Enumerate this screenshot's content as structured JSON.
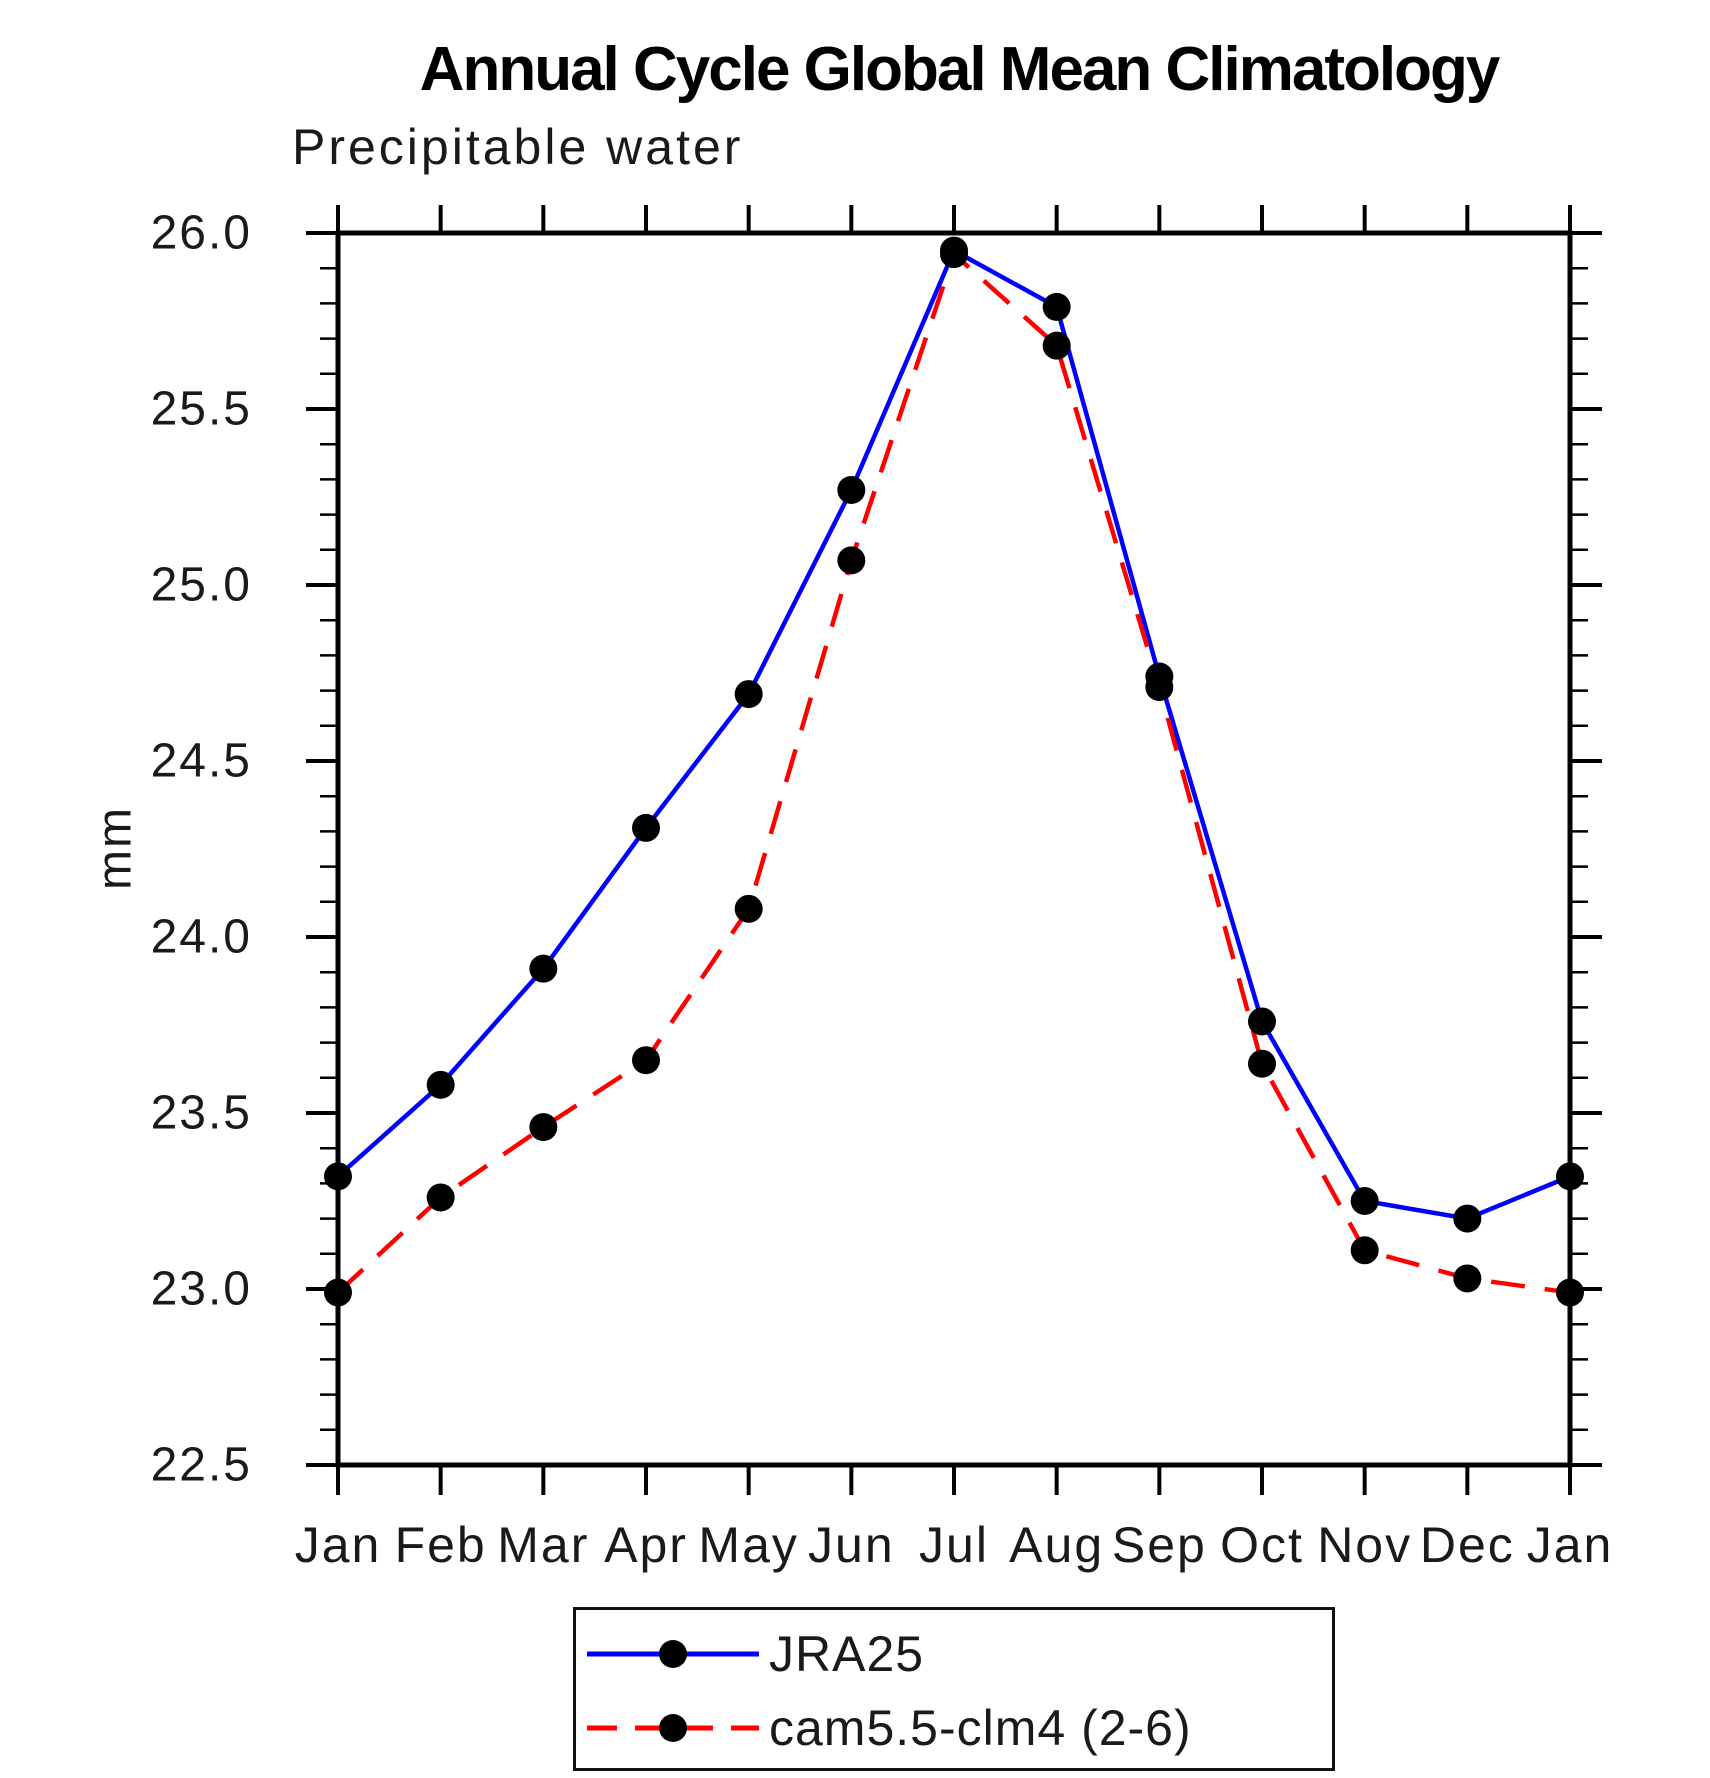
{
  "header": {
    "title": "Annual Cycle Global Mean Climatology",
    "subtitle": "Precipitable water"
  },
  "chart_data": {
    "type": "line",
    "title": "Annual Cycle Global Mean Climatology",
    "subtitle": "Precipitable water",
    "xlabel": "",
    "ylabel": "mm",
    "categories": [
      "Jan",
      "Feb",
      "Mar",
      "Apr",
      "May",
      "Jun",
      "Jul",
      "Aug",
      "Sep",
      "Oct",
      "Nov",
      "Dec",
      "Jan"
    ],
    "ylim": [
      22.5,
      26.0
    ],
    "ytick_step": 0.5,
    "ytick_minor_step": 0.1,
    "ytick_labels": [
      "22.5",
      "23.0",
      "23.5",
      "24.0",
      "24.5",
      "25.0",
      "25.5",
      "26.0"
    ],
    "grid": false,
    "legend_position": "bottom",
    "axis_color": "#000000",
    "marker_color": "#000000",
    "series": [
      {
        "name": "JRA25",
        "color": "#0000ff",
        "style": "solid",
        "values": [
          23.32,
          23.58,
          23.91,
          24.31,
          24.69,
          25.27,
          25.95,
          25.79,
          24.74,
          23.76,
          23.25,
          23.2,
          23.32
        ]
      },
      {
        "name": "cam5.5-clm4 (2-6)",
        "color": "#ff0000",
        "style": "dashed",
        "values": [
          22.99,
          23.26,
          23.46,
          23.65,
          24.08,
          25.07,
          25.94,
          25.68,
          24.71,
          23.64,
          23.11,
          23.03,
          22.99
        ]
      }
    ]
  }
}
